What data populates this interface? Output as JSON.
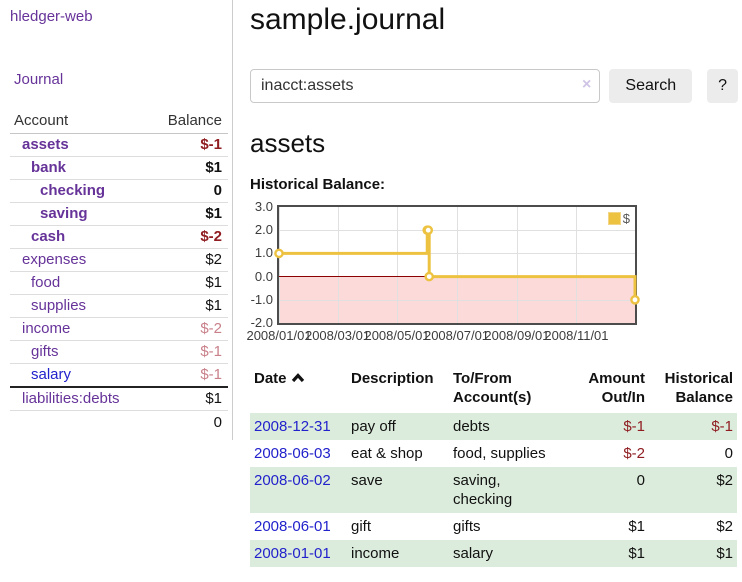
{
  "app": {
    "brand": "hledger-web",
    "nav": {
      "journal": "Journal"
    }
  },
  "colors": {
    "link_purple": "#663399",
    "link_blue": "#2222cc",
    "negative": "#8f1d21",
    "negative_muted": "#c9808a",
    "row_stripe_green": "#dcecdc",
    "chart_line_gold": "#edc240",
    "chart_negative_fill": "#fcdada",
    "chart_zero_line": "#8b0000"
  },
  "sidebar": {
    "header": {
      "account": "Account",
      "balance": "Balance"
    },
    "accounts": [
      {
        "name": "assets",
        "balance": "$-1",
        "level": 1,
        "in_filter": true,
        "tone": "neg-strong",
        "link": "visited"
      },
      {
        "name": "bank",
        "balance": "$1",
        "level": 2,
        "in_filter": true,
        "tone": "",
        "link": "visited"
      },
      {
        "name": "checking",
        "balance": "0",
        "level": 3,
        "in_filter": true,
        "tone": "",
        "link": "visited"
      },
      {
        "name": "saving",
        "balance": "$1",
        "level": 3,
        "in_filter": true,
        "tone": "",
        "link": "visited"
      },
      {
        "name": "cash",
        "balance": "$-2",
        "level": 2,
        "in_filter": true,
        "tone": "neg-strong",
        "link": "visited"
      },
      {
        "name": "expenses",
        "balance": "$2",
        "level": 1,
        "in_filter": false,
        "tone": "",
        "link": "visited"
      },
      {
        "name": "food",
        "balance": "$1",
        "level": 2,
        "in_filter": false,
        "tone": "",
        "link": "visited"
      },
      {
        "name": "supplies",
        "balance": "$1",
        "level": 2,
        "in_filter": false,
        "tone": "",
        "link": "visited"
      },
      {
        "name": "income",
        "balance": "$-2",
        "level": 1,
        "in_filter": false,
        "tone": "neg-muted",
        "link": "visited"
      },
      {
        "name": "gifts",
        "balance": "$-1",
        "level": 2,
        "in_filter": false,
        "tone": "neg-muted",
        "link": "visited"
      },
      {
        "name": "salary",
        "balance": "$-1",
        "level": 2,
        "in_filter": false,
        "tone": "neg-muted",
        "link": "unvisited"
      },
      {
        "name": "liabilities:debts",
        "balance": "$1",
        "level": 1,
        "in_filter": false,
        "tone": "",
        "link": "visited"
      }
    ],
    "total": "0"
  },
  "header": {
    "title": "sample.journal"
  },
  "search": {
    "value": "inacct:assets",
    "clear_icon": "×",
    "button_label": "Search",
    "help_label": "?"
  },
  "account_page": {
    "title": "assets",
    "chart_label": "Historical Balance:"
  },
  "chart_data": {
    "type": "line",
    "step": true,
    "title": "Historical Balance:",
    "series": [
      {
        "name": "$",
        "points": [
          [
            "2008-01-01",
            1
          ],
          [
            "2008-06-01",
            2
          ],
          [
            "2008-06-02",
            2
          ],
          [
            "2008-06-03",
            0
          ],
          [
            "2008-12-31",
            -1
          ]
        ]
      }
    ],
    "x_range": [
      "2008-01-01",
      "2008-12-31"
    ],
    "x_ticks": [
      "2008/01/01",
      "2008/03/01",
      "2008/05/01",
      "2008/07/01",
      "2008/09/01",
      "2008/11/01"
    ],
    "y_ticks": [
      "3.0",
      "2.0",
      "1.0",
      "0.0",
      "-1.0",
      "-2.0"
    ],
    "ylim": [
      -2,
      3
    ],
    "grid": true,
    "legend": "$",
    "legend_position": "top-right"
  },
  "register": {
    "columns": {
      "date": "Date",
      "description": "Description",
      "accounts": "To/From Account(s)",
      "amount": "Amount Out/In",
      "balance": "Historical Balance"
    },
    "rows": [
      {
        "date": "2008-12-31",
        "description": "pay off",
        "accounts": "debts",
        "amount": "$-1",
        "amount_neg": true,
        "balance": "$-1",
        "balance_neg": true
      },
      {
        "date": "2008-06-03",
        "description": "eat & shop",
        "accounts": "food, supplies",
        "amount": "$-2",
        "amount_neg": true,
        "balance": "0",
        "balance_neg": false
      },
      {
        "date": "2008-06-02",
        "description": "save",
        "accounts": "saving,\nchecking",
        "amount": "0",
        "amount_neg": false,
        "balance": "$2",
        "balance_neg": false
      },
      {
        "date": "2008-06-01",
        "description": "gift",
        "accounts": "gifts",
        "amount": "$1",
        "amount_neg": false,
        "balance": "$2",
        "balance_neg": false
      },
      {
        "date": "2008-01-01",
        "description": "income",
        "accounts": "salary",
        "amount": "$1",
        "amount_neg": false,
        "balance": "$1",
        "balance_neg": false
      }
    ]
  }
}
